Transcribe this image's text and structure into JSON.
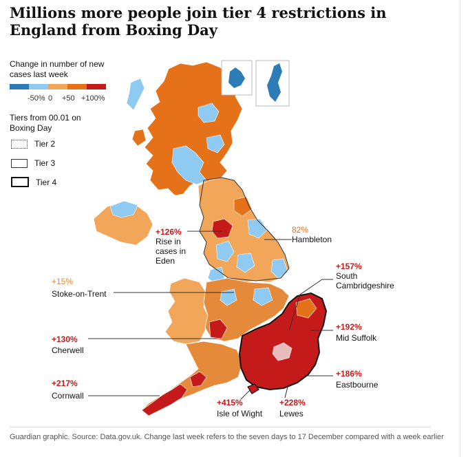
{
  "title": "Millions more people join tier 4 restrictions in England from Boxing Day",
  "legend": {
    "change_title": "Change in number of new cases last week",
    "scale_colors": [
      "#2d7cb6",
      "#8fcaf2",
      "#f2a65a",
      "#e57219",
      "#c41a1a"
    ],
    "scale_labels": [
      "-50%",
      "0",
      "+50",
      "+100%"
    ],
    "tiers_title": "Tiers from 00.01 on Boxing Day",
    "tier2": "Tier 2",
    "tier3": "Tier 3",
    "tier4": "Tier 4"
  },
  "annotations": [
    {
      "id": "eden",
      "pct": "+126%",
      "name": "Rise in cases in Eden",
      "color": "#c41a1a"
    },
    {
      "id": "hambleton",
      "pct": "82%",
      "name": "Hambleton",
      "color": "#e57219"
    },
    {
      "id": "stoke",
      "pct": "+15%",
      "name": "Stoke-on-Trent",
      "color": "#e58a3a"
    },
    {
      "id": "southcambs",
      "pct": "+157%",
      "name": "South Cambridgeshire",
      "color": "#c41a1a"
    },
    {
      "id": "midsuffolk",
      "pct": "+192%",
      "name": "Mid Suffolk",
      "color": "#c41a1a"
    },
    {
      "id": "cherwell",
      "pct": "+130%",
      "name": "Cherwell",
      "color": "#c41a1a"
    },
    {
      "id": "eastbourne",
      "pct": "+186%",
      "name": "Eastbourne",
      "color": "#c41a1a"
    },
    {
      "id": "cornwall",
      "pct": "+217%",
      "name": "Cornwall",
      "color": "#c41a1a"
    },
    {
      "id": "iow",
      "pct": "+415%",
      "name": "Isle of Wight",
      "color": "#c41a1a"
    },
    {
      "id": "lewes",
      "pct": "+228%",
      "name": "Lewes",
      "color": "#c41a1a"
    }
  ],
  "footnote": "Guardian graphic. Source: Data.gov.uk. Change last week refers to the seven days to 17 December compared with a week earlier"
}
